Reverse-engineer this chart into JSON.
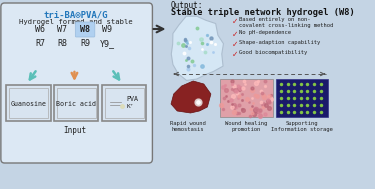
{
  "bg_color": "#c4d4e4",
  "title": "tri-BA⊙PVA/G",
  "subtitle": "Hydrogel formed and stable",
  "grid_items_row1": [
    "W6",
    "W7",
    "W8",
    "W9"
  ],
  "grid_items_row2": [
    "R7",
    "R8",
    "R9",
    "Y9_"
  ],
  "highlight_item": "W8",
  "output_label": "Output:",
  "output_subtitle": "Stable triple network hydrogel (W8)",
  "checkmarks": [
    "Based entirely on non-\ncovalent cross-linking method",
    "No pH-dependence",
    "Shape-adaption capability",
    "Good biocompatibility"
  ],
  "input_labels": [
    "Guanosine",
    "Boric acid",
    "PVA\nK⁺"
  ],
  "bottom_labels": [
    "Rapid wound\nhemostasis",
    "Wound healing\npromotion",
    "Supporting\nInformation storage"
  ],
  "arrow_colors_outline": [
    "#5bbfb8",
    "#e09050",
    "#5bbfb8"
  ],
  "box_bg": "#dce8f4",
  "input_box_bg": "#d8e4f0",
  "dashed_color": "#555555",
  "check_color": "#cc2020",
  "title_color": "#2277bb",
  "text_color": "#222222",
  "hex_fill": "#d8eaf8",
  "hex_edge": "#aabbcc",
  "dot_colors": [
    "#aaccee",
    "#88bbdd",
    "#7799bb",
    "#aaddcc",
    "#88cc99",
    "#ffffff"
  ],
  "liver_color": "#882222",
  "liver_highlight": "#cc3344",
  "tissue_color": "#e8a8b0",
  "storage_bg": "#1a1a6a",
  "storage_dot": "#88cc44"
}
